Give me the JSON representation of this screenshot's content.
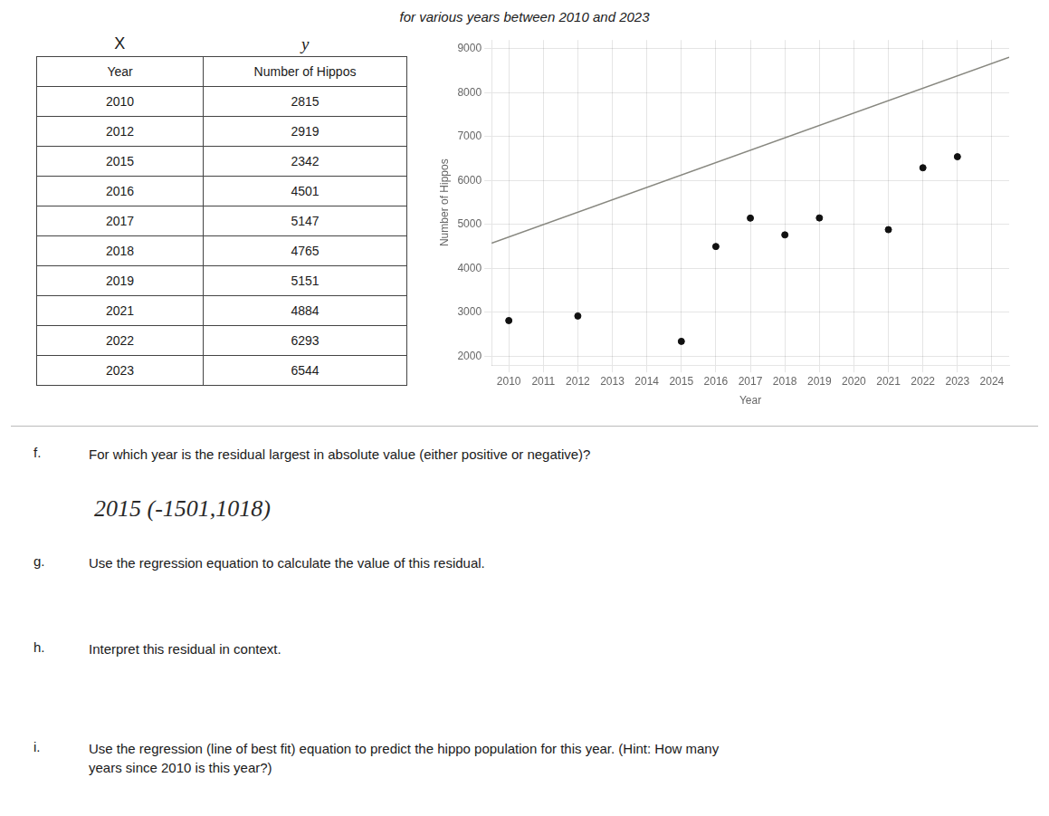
{
  "chart_data": {
    "type": "scatter",
    "title": "for various years between 2010 and 2023",
    "x_label": "Year",
    "y_label": "Number of Hippos",
    "series": [
      {
        "type": "line",
        "color": "#888880",
        "line_style": "solid",
        "x": [
          2009.5,
          2024.5
        ],
        "values": [
          4576,
          8806
        ]
      },
      {
        "type": "scatter",
        "color": "#111111",
        "marker": "circle",
        "x": [
          2010,
          2012,
          2015,
          2016,
          2017,
          2018,
          2019,
          2021,
          2022,
          2023
        ],
        "values": [
          2815,
          2919,
          2342,
          4501,
          5147,
          4765,
          5151,
          4884,
          6293,
          6544
        ]
      }
    ],
    "xlim": [
      2009.5,
      2024.5
    ],
    "xticks": [
      2010,
      2011,
      2012,
      2013,
      2014,
      2015,
      2016,
      2017,
      2018,
      2019,
      2020,
      2021,
      2022,
      2023,
      2024
    ],
    "ylim": [
      1800,
      9200
    ],
    "yticks": [
      2000,
      3000,
      4000,
      5000,
      6000,
      7000,
      8000,
      9000
    ],
    "grid": true,
    "annotations": [
      "X",
      "y",
      "f.",
      "For which year is the residual largest in absolute value (either positive or negative)?",
      "2015 (-1501,1018)",
      "g.",
      "Use the regression equation to calculate the value of this residual.",
      "h.",
      "Interpret this residual in context.",
      "i.",
      "Use the regression (line of best fit) equation to predict the hippo population for this year. (Hint: How many\nyears since 2010 is this year?)"
    ]
  }
}
